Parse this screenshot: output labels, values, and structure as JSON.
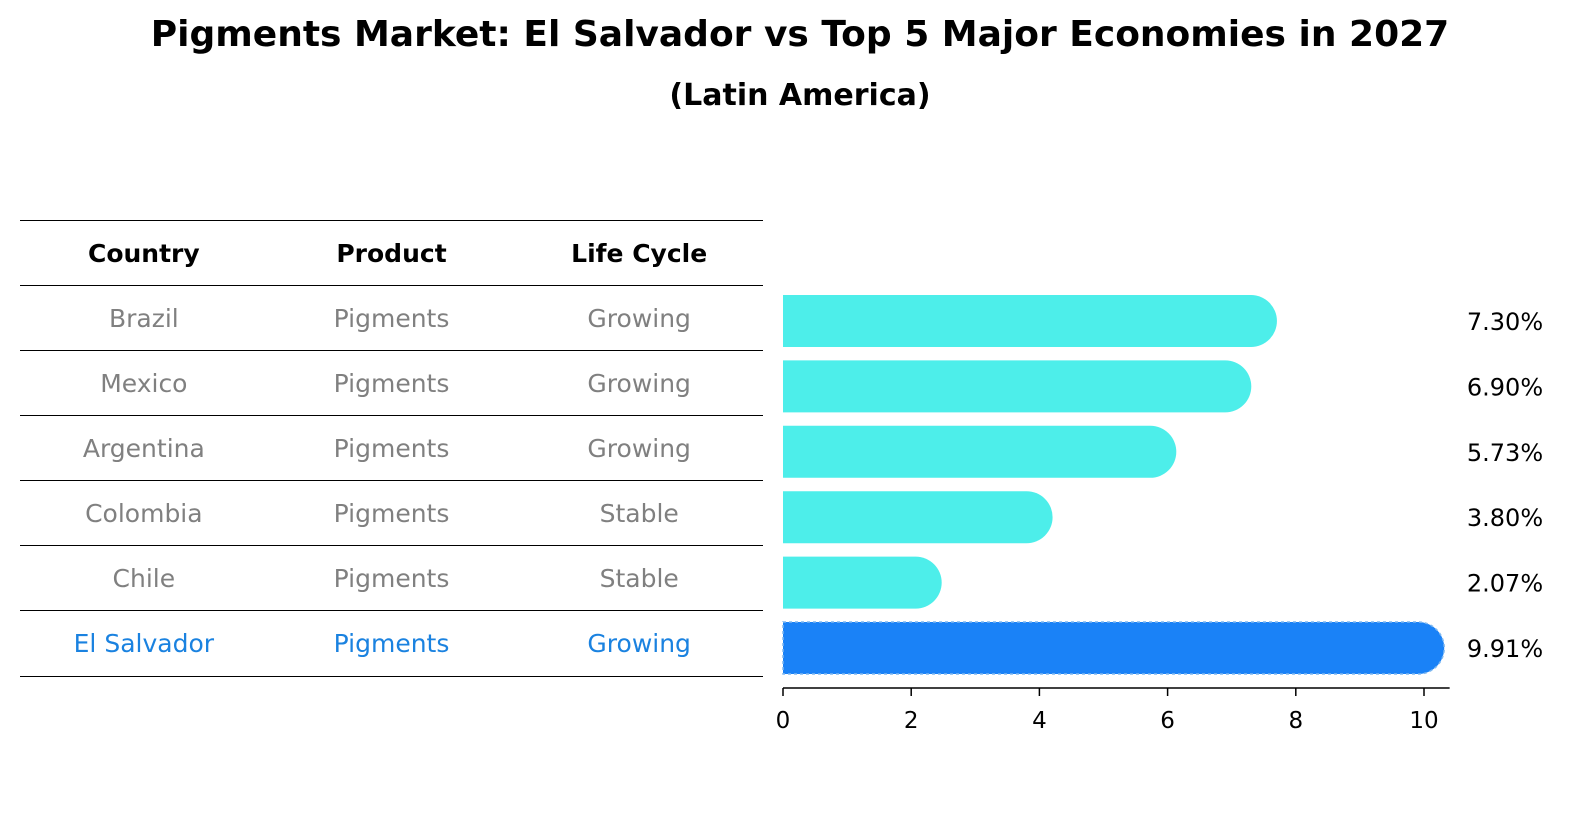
{
  "chart_data": {
    "type": "bar",
    "orientation": "horizontal",
    "title": "Pigments Market: El Salvador vs Top 5 Major Economies in 2027",
    "subtitle": "(Latin America)",
    "categories": [
      "Brazil",
      "Mexico",
      "Argentina",
      "Colombia",
      "Chile",
      "El Salvador"
    ],
    "values": [
      7.3,
      6.9,
      5.73,
      3.8,
      2.07,
      9.91
    ],
    "value_labels": [
      "7.30%",
      "6.90%",
      "5.73%",
      "3.80%",
      "2.07%",
      "9.91%"
    ],
    "xlim": [
      0,
      10.4
    ],
    "x_ticks": [
      0,
      2,
      4,
      6,
      8,
      10
    ],
    "grid": false,
    "bar_color": "#4deeea",
    "highlight_color": "#1a82f7",
    "highlight_category": "El Salvador"
  },
  "table": {
    "headers": [
      "Country",
      "Product",
      "Life Cycle"
    ],
    "rows": [
      [
        "Brazil",
        "Pigments",
        "Growing"
      ],
      [
        "Mexico",
        "Pigments",
        "Growing"
      ],
      [
        "Argentina",
        "Pigments",
        "Growing"
      ],
      [
        "Colombia",
        "Pigments",
        "Stable"
      ],
      [
        "Chile",
        "Pigments",
        "Stable"
      ],
      [
        "El Salvador",
        "Pigments",
        "Growing"
      ]
    ],
    "text_color": "#808080",
    "highlight_text_color": "#1a82e0"
  }
}
